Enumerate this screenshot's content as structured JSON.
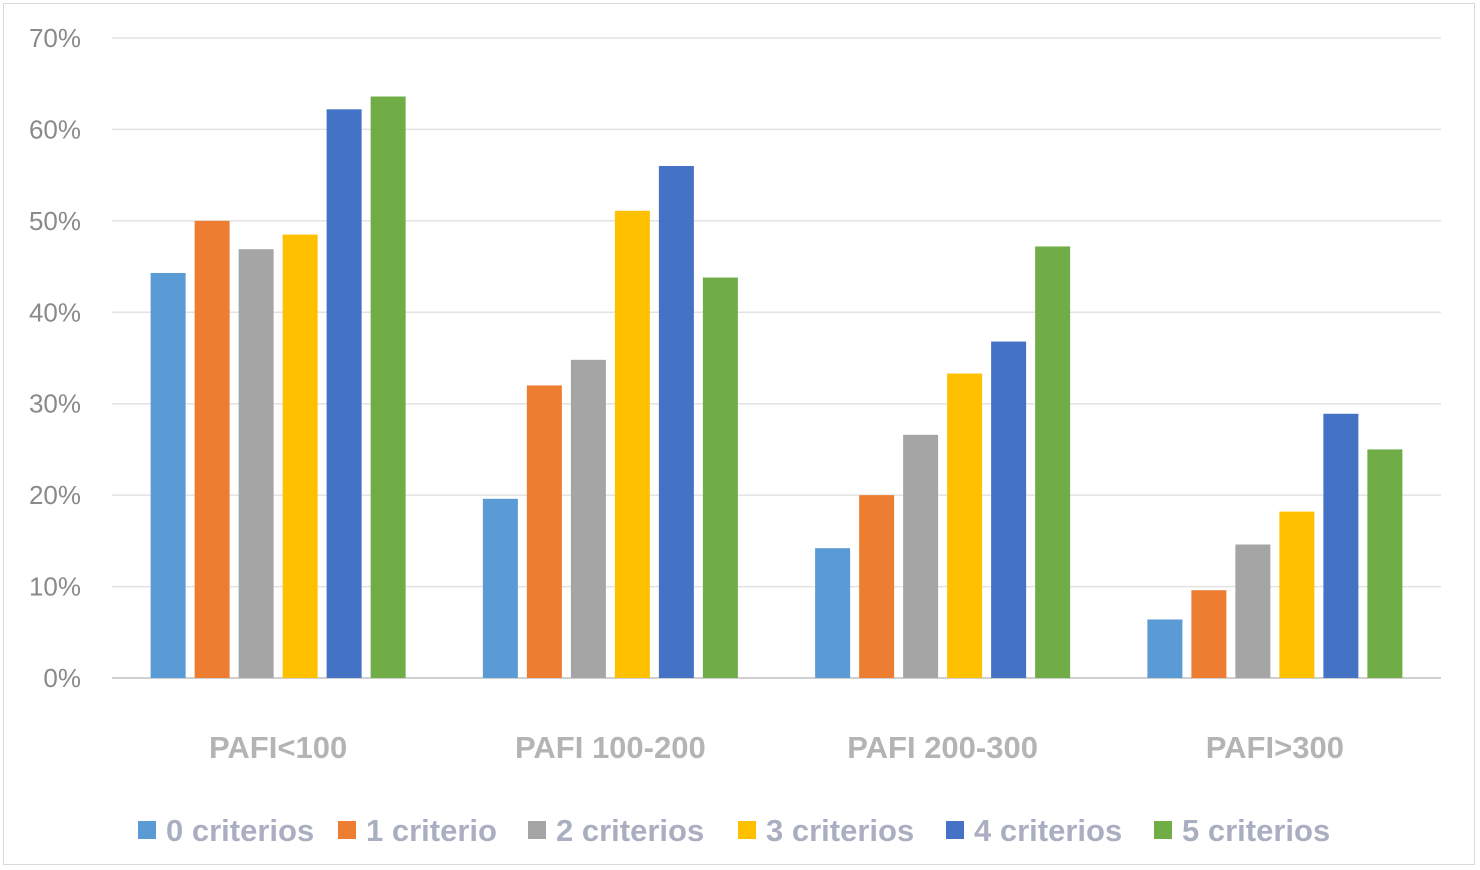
{
  "chart_data": {
    "type": "bar",
    "categories": [
      "PAFI<100",
      "PAFI 100-200",
      "PAFI 200-300",
      "PAFI>300"
    ],
    "series": [
      {
        "name": "0 criterios",
        "color": "#5b9bd5",
        "values": [
          44.3,
          19.6,
          14.2,
          6.4
        ]
      },
      {
        "name": "1 criterio",
        "color": "#ed7d31",
        "values": [
          50.0,
          32.0,
          20.0,
          9.6
        ]
      },
      {
        "name": "2 criterios",
        "color": "#a5a5a5",
        "values": [
          46.9,
          34.8,
          26.6,
          14.6
        ]
      },
      {
        "name": "3 criterios",
        "color": "#ffc000",
        "values": [
          48.5,
          51.1,
          33.3,
          18.2
        ]
      },
      {
        "name": "4 criterios",
        "color": "#4472c4",
        "values": [
          62.2,
          56.0,
          36.8,
          28.9
        ]
      },
      {
        "name": "5 criterios",
        "color": "#70ad47",
        "values": [
          63.6,
          43.8,
          47.2,
          25.0
        ]
      }
    ],
    "y_ticks": [
      "0%",
      "10%",
      "20%",
      "30%",
      "40%",
      "50%",
      "60%",
      "70%"
    ],
    "ylim": [
      0,
      70
    ],
    "grid": true,
    "legend_position": "bottom",
    "title": "",
    "xlabel": "",
    "ylabel": ""
  }
}
